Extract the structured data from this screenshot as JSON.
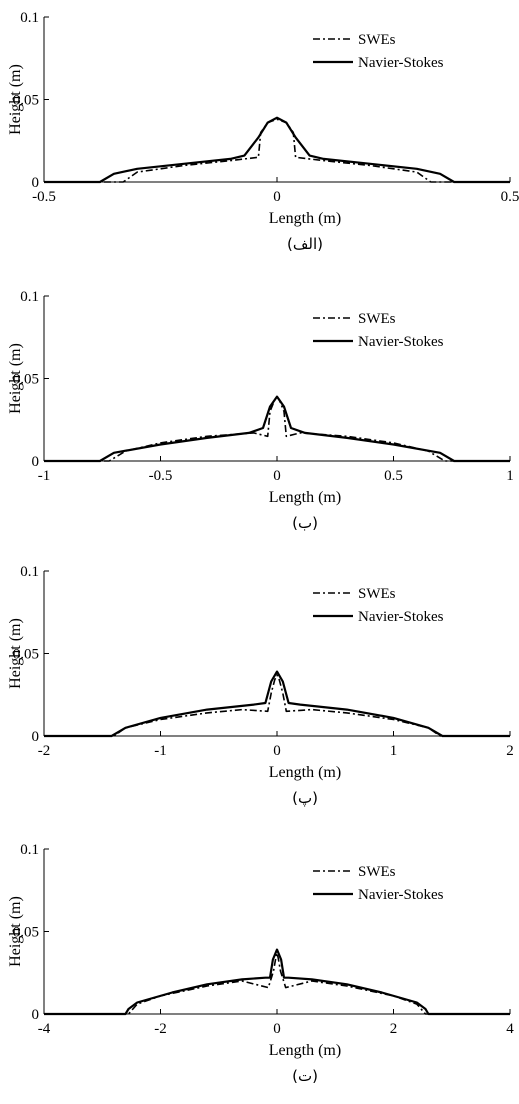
{
  "legend_labels": {
    "swe": "SWEs",
    "ns": "Navier-Stokes"
  },
  "chart_data": [
    {
      "type": "line",
      "caption": "(الف)",
      "xlabel": "Length (m)",
      "ylabel": "Height (m)",
      "xlim": [
        -0.5,
        0.5
      ],
      "ylim": [
        0,
        0.1
      ],
      "xticks": [
        "-0.5",
        "0",
        "0.5"
      ],
      "yticks": [
        "0",
        "0.05",
        "0.1"
      ],
      "legend_position": "top-right",
      "series": [
        {
          "name": "SWEs",
          "style": "dashdot",
          "x": [
            -0.5,
            -0.33,
            -0.3,
            -0.2,
            -0.1,
            -0.04,
            -0.035,
            -0.02,
            0,
            0.02,
            0.035,
            0.04,
            0.1,
            0.2,
            0.3,
            0.33,
            0.5
          ],
          "y": [
            0,
            0,
            0.006,
            0.01,
            0.013,
            0.015,
            0.03,
            0.036,
            0.038,
            0.036,
            0.03,
            0.015,
            0.013,
            0.01,
            0.006,
            0,
            0
          ]
        },
        {
          "name": "Navier-Stokes",
          "style": "solid",
          "x": [
            -0.5,
            -0.38,
            -0.35,
            -0.3,
            -0.2,
            -0.1,
            -0.07,
            -0.04,
            -0.02,
            0,
            0.02,
            0.04,
            0.07,
            0.1,
            0.2,
            0.3,
            0.35,
            0.38,
            0.5
          ],
          "y": [
            0,
            0,
            0.005,
            0.008,
            0.011,
            0.014,
            0.016,
            0.027,
            0.036,
            0.039,
            0.036,
            0.027,
            0.016,
            0.014,
            0.011,
            0.008,
            0.005,
            0,
            0
          ]
        }
      ]
    },
    {
      "type": "line",
      "caption": "(ب)",
      "xlabel": "Length (m)",
      "ylabel": "Height (m)",
      "xlim": [
        -1,
        1
      ],
      "ylim": [
        0,
        0.1
      ],
      "xticks": [
        "-1",
        "-0.5",
        "0",
        "0.5",
        "1"
      ],
      "yticks": [
        "0",
        "0.05",
        "0.1"
      ],
      "legend_position": "top-right",
      "series": [
        {
          "name": "SWEs",
          "style": "dashdot",
          "x": [
            -1,
            -0.72,
            -0.65,
            -0.5,
            -0.3,
            -0.1,
            -0.04,
            -0.03,
            -0.01,
            0,
            0.01,
            0.03,
            0.04,
            0.1,
            0.3,
            0.5,
            0.65,
            0.72,
            1
          ],
          "y": [
            0,
            0,
            0.006,
            0.011,
            0.015,
            0.017,
            0.015,
            0.03,
            0.037,
            0.039,
            0.037,
            0.03,
            0.015,
            0.017,
            0.015,
            0.011,
            0.006,
            0,
            0
          ]
        },
        {
          "name": "Navier-Stokes",
          "style": "solid",
          "x": [
            -1,
            -0.76,
            -0.7,
            -0.5,
            -0.3,
            -0.12,
            -0.06,
            -0.03,
            0,
            0.03,
            0.06,
            0.12,
            0.3,
            0.5,
            0.7,
            0.76,
            1
          ],
          "y": [
            0,
            0,
            0.005,
            0.01,
            0.014,
            0.017,
            0.02,
            0.033,
            0.039,
            0.033,
            0.02,
            0.017,
            0.014,
            0.01,
            0.005,
            0,
            0
          ]
        }
      ]
    },
    {
      "type": "line",
      "caption": "(پ)",
      "xlabel": "Length (m)",
      "ylabel": "Height (m)",
      "xlim": [
        -2,
        2
      ],
      "ylim": [
        0,
        0.1
      ],
      "xticks": [
        "-2",
        "-1",
        "0",
        "1",
        "2"
      ],
      "yticks": [
        "0",
        "0.05",
        "0.1"
      ],
      "legend_position": "top-right",
      "series": [
        {
          "name": "SWEs",
          "style": "dashdot",
          "x": [
            -2,
            -1.4,
            -1.3,
            -1,
            -0.6,
            -0.3,
            -0.08,
            -0.05,
            -0.02,
            0,
            0.02,
            0.05,
            0.08,
            0.3,
            0.6,
            1,
            1.3,
            1.4,
            2
          ],
          "y": [
            0,
            0,
            0.005,
            0.01,
            0.014,
            0.016,
            0.015,
            0.026,
            0.034,
            0.037,
            0.034,
            0.026,
            0.015,
            0.016,
            0.014,
            0.01,
            0.005,
            0,
            0
          ]
        },
        {
          "name": "Navier-Stokes",
          "style": "solid",
          "x": [
            -2,
            -1.42,
            -1.3,
            -1,
            -0.6,
            -0.2,
            -0.1,
            -0.05,
            0,
            0.05,
            0.1,
            0.2,
            0.6,
            1,
            1.3,
            1.42,
            2
          ],
          "y": [
            0,
            0,
            0.005,
            0.011,
            0.016,
            0.019,
            0.02,
            0.033,
            0.039,
            0.033,
            0.02,
            0.019,
            0.016,
            0.011,
            0.005,
            0,
            0
          ]
        }
      ]
    },
    {
      "type": "line",
      "caption": "(ت)",
      "xlabel": "Length (m)",
      "ylabel": "Height (m)",
      "xlim": [
        -4,
        4
      ],
      "ylim": [
        0,
        0.1
      ],
      "xticks": [
        "-4",
        "-2",
        "0",
        "2",
        "4"
      ],
      "yticks": [
        "0",
        "0.05",
        "0.1"
      ],
      "legend_position": "top-right",
      "series": [
        {
          "name": "SWEs",
          "style": "dashdot",
          "x": [
            -4,
            -2.55,
            -2.4,
            -2,
            -1.2,
            -0.6,
            -0.15,
            -0.06,
            -0.02,
            0,
            0.02,
            0.06,
            0.15,
            0.6,
            1.2,
            2,
            2.4,
            2.55,
            4
          ],
          "y": [
            0,
            0,
            0.006,
            0.011,
            0.017,
            0.02,
            0.016,
            0.026,
            0.034,
            0.037,
            0.034,
            0.026,
            0.016,
            0.02,
            0.017,
            0.011,
            0.006,
            0,
            0
          ]
        },
        {
          "name": "Navier-Stokes",
          "style": "solid",
          "x": [
            -4,
            -2.6,
            -2.55,
            -2.4,
            -1.8,
            -1.2,
            -0.6,
            -0.2,
            -0.12,
            -0.07,
            0,
            0.07,
            0.12,
            0.2,
            0.6,
            1.2,
            1.8,
            2.4,
            2.55,
            2.6,
            4
          ],
          "y": [
            0,
            0,
            0.003,
            0.007,
            0.013,
            0.018,
            0.021,
            0.022,
            0.022,
            0.033,
            0.039,
            0.033,
            0.022,
            0.022,
            0.021,
            0.018,
            0.013,
            0.007,
            0.003,
            0,
            0
          ]
        }
      ]
    }
  ]
}
